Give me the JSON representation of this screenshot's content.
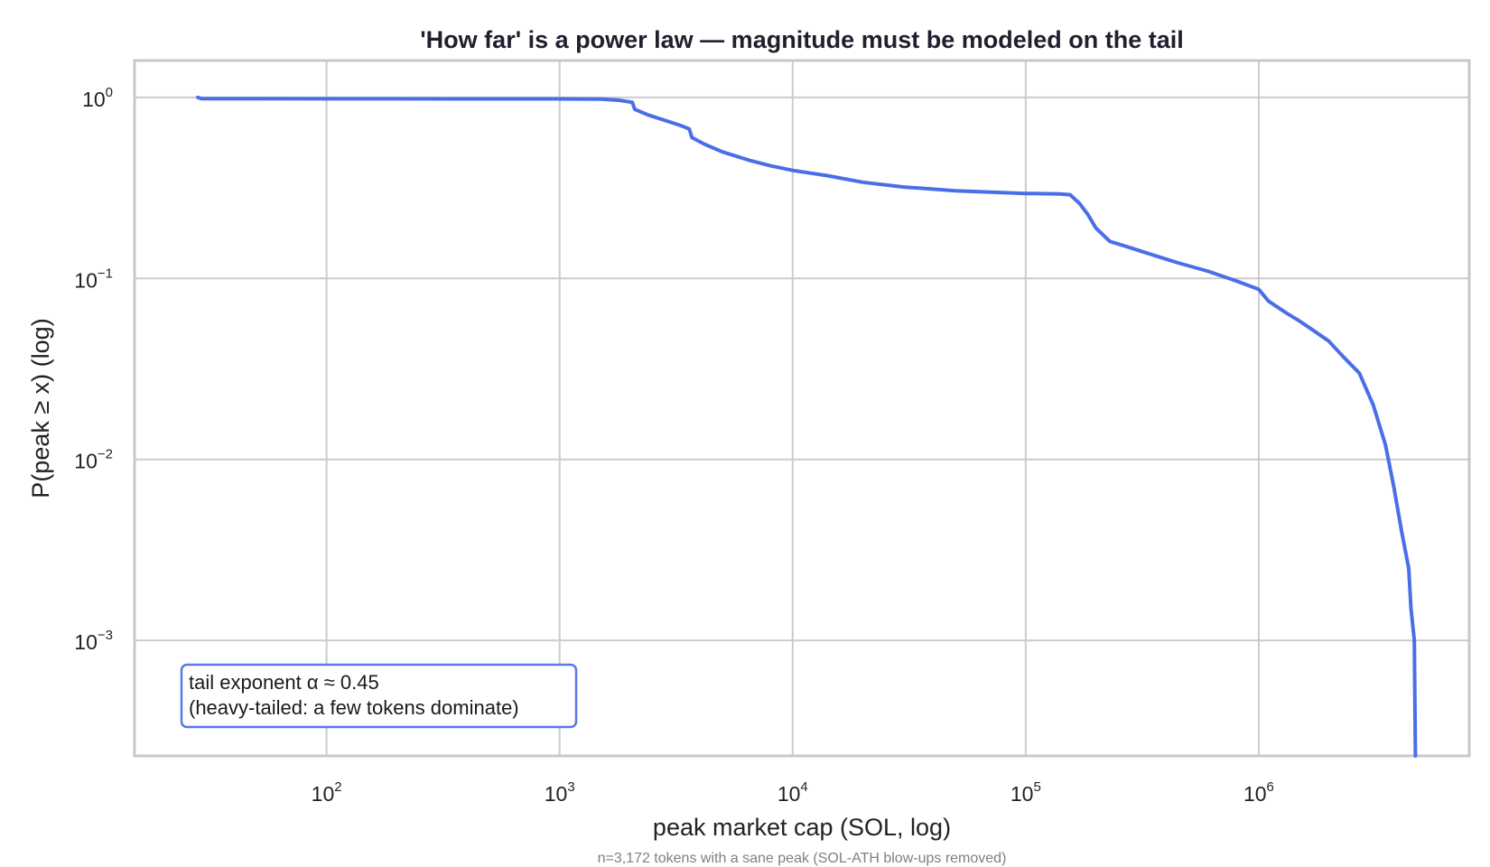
{
  "chart_data": {
    "type": "line",
    "title": "'How far' is a power law — magnitude must be modeled on the tail",
    "xlabel": "peak market cap (SOL, log)",
    "ylabel": "P(peak ≥ x)  (log)",
    "footnote": "n=3,172 tokens with a sane peak (SOL-ATH blow-ups removed)",
    "x_scale": "log",
    "y_scale": "log",
    "xlim": [
      15,
      8000000
    ],
    "ylim": [
      0.00023,
      1.6
    ],
    "grid": true,
    "x_ticks": [
      {
        "value": 100,
        "base": "10",
        "exp": "2"
      },
      {
        "value": 1000,
        "base": "10",
        "exp": "3"
      },
      {
        "value": 10000,
        "base": "10",
        "exp": "4"
      },
      {
        "value": 100000,
        "base": "10",
        "exp": "5"
      },
      {
        "value": 1000000,
        "base": "10",
        "exp": "6"
      }
    ],
    "y_ticks": [
      {
        "value": 1,
        "base": "10",
        "exp": "0"
      },
      {
        "value": 0.1,
        "base": "10",
        "exp": "−1"
      },
      {
        "value": 0.01,
        "base": "10",
        "exp": "−2"
      },
      {
        "value": 0.001,
        "base": "10",
        "exp": "−3"
      }
    ],
    "annotation": {
      "line1": "tail exponent α ≈ 0.45",
      "line2": "(heavy-tailed: a few tokens dominate)",
      "placement": "bottom-left"
    },
    "colors": {
      "line": "#4a6ee8",
      "grid": "#cccccc",
      "frame": "#c8c8c8",
      "annotation_border": "#5a78e6"
    },
    "series": [
      {
        "points": [
          [
            28,
            1.0
          ],
          [
            29,
            0.985
          ],
          [
            50,
            0.984
          ],
          [
            200,
            0.983
          ],
          [
            1000,
            0.982
          ],
          [
            1500,
            0.98
          ],
          [
            1800,
            0.965
          ],
          [
            2050,
            0.94
          ],
          [
            2100,
            0.86
          ],
          [
            2400,
            0.8
          ],
          [
            2800,
            0.75
          ],
          [
            3300,
            0.7
          ],
          [
            3600,
            0.67
          ],
          [
            3700,
            0.6
          ],
          [
            4200,
            0.55
          ],
          [
            5000,
            0.5
          ],
          [
            6500,
            0.45
          ],
          [
            8000,
            0.42
          ],
          [
            10000,
            0.395
          ],
          [
            14000,
            0.37
          ],
          [
            20000,
            0.34
          ],
          [
            30000,
            0.32
          ],
          [
            50000,
            0.305
          ],
          [
            100000,
            0.295
          ],
          [
            140000,
            0.293
          ],
          [
            155000,
            0.29
          ],
          [
            170000,
            0.26
          ],
          [
            185000,
            0.225
          ],
          [
            200000,
            0.19
          ],
          [
            230000,
            0.16
          ],
          [
            280000,
            0.148
          ],
          [
            350000,
            0.135
          ],
          [
            450000,
            0.122
          ],
          [
            600000,
            0.11
          ],
          [
            800000,
            0.097
          ],
          [
            1000000,
            0.087
          ],
          [
            1100000,
            0.075
          ],
          [
            1300000,
            0.065
          ],
          [
            1500000,
            0.058
          ],
          [
            1700000,
            0.052
          ],
          [
            2000000,
            0.045
          ],
          [
            2300000,
            0.037
          ],
          [
            2700000,
            0.03
          ],
          [
            3100000,
            0.02
          ],
          [
            3500000,
            0.012
          ],
          [
            3800000,
            0.007
          ],
          [
            4100000,
            0.004
          ],
          [
            4400000,
            0.0025
          ],
          [
            4500000,
            0.0015
          ],
          [
            4650000,
            0.001
          ],
          [
            4700000,
            0.00023
          ]
        ]
      }
    ]
  }
}
